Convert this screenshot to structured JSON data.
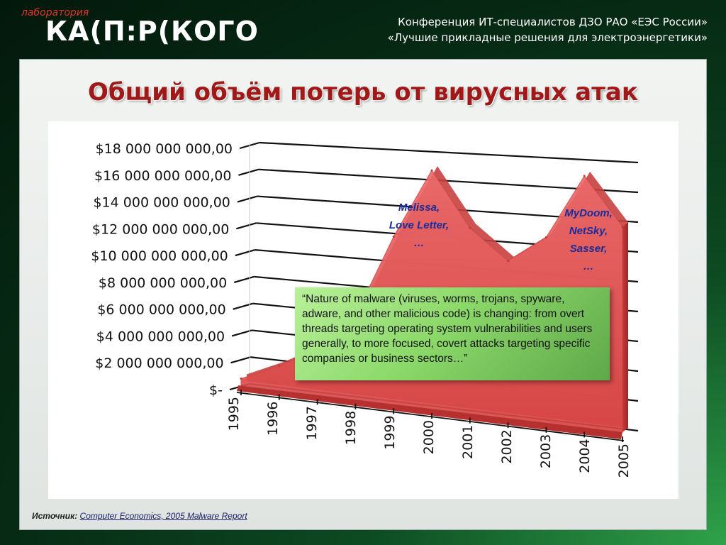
{
  "header": {
    "logo_tagline": "лаборатория",
    "logo_name": "КА(П:Р(КОГО",
    "conference_line1": "Конференция ИТ-специалистов ДЗО РАО «ЕЭС России»",
    "conference_line2": "«Лучшие прикладные решения для электроэнергетики»"
  },
  "slide": {
    "title": "Общий объём потерь от вирусных атак",
    "quote": "“Nature of malware (viruses, worms, trojans, spyware, adware, and other malicious code) is changing: from overt threads targeting operating system vulnerabilities and users generally, to more focused, covert attacks targeting specific companies or business sectors…”",
    "annotations": {
      "a2000": [
        "Melissa,",
        "Love Letter,",
        "…"
      ],
      "a2004": [
        "MyDoom,",
        "NetSky,",
        "Sasser,",
        "…"
      ]
    },
    "source_label": "Источник:",
    "source_text": "Computer Economics, 2005 Malware Report"
  },
  "chart_data": {
    "type": "area",
    "title": "",
    "xlabel": "",
    "ylabel": "",
    "x": [
      "1995",
      "1996",
      "1997",
      "1998",
      "1999",
      "2000",
      "2001",
      "2002",
      "2003",
      "2004",
      "2005"
    ],
    "values": [
      500000000,
      1800000000,
      3300000000,
      6100000000,
      12100000000,
      17100000000,
      13200000000,
      11100000000,
      13000000000,
      17500000000,
      14200000000
    ],
    "ylim": [
      0,
      18000000000
    ],
    "yticks": [
      "$-",
      "$2 000 000 000,00",
      "$4 000 000 000,00",
      "$6 000 000 000,00",
      "$8 000 000 000,00",
      "$10 000 000 000,00",
      "$12 000 000 000,00",
      "$14 000 000 000,00",
      "$16 000 000 000,00",
      "$18 000 000 000,00"
    ],
    "grid": true,
    "colors": {
      "area": "#e05555",
      "area_dark": "#b83030"
    }
  }
}
